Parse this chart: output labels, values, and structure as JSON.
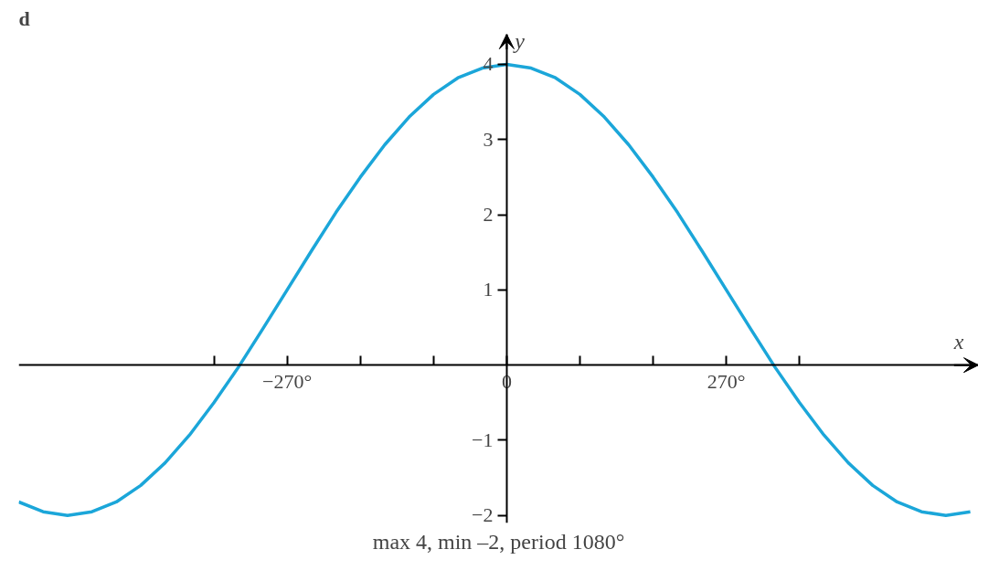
{
  "chart_data": {
    "type": "line",
    "title": "d",
    "xlabel": "x",
    "ylabel": "y",
    "annotations": [
      "max 4, min –2, period 1080°"
    ],
    "x": [
      -600,
      -570,
      -540,
      -510,
      -480,
      -450,
      -420,
      -390,
      -360,
      -330,
      -300,
      -270,
      -240,
      -210,
      -180,
      -150,
      -120,
      -90,
      -60,
      -30,
      0,
      30,
      60,
      90,
      120,
      150,
      180,
      210,
      240,
      270,
      300,
      330,
      360,
      390,
      420,
      450,
      480,
      510,
      540,
      570
    ],
    "series": [
      {
        "color": "#1ba6d9",
        "values": [
          -1.82,
          -1.95,
          -2,
          -1.95,
          -1.82,
          -1.6,
          -1.3,
          -0.93,
          -0.5,
          -0.03,
          0.48,
          1,
          1.52,
          2.03,
          2.5,
          2.93,
          3.3,
          3.6,
          3.82,
          3.95,
          4,
          3.95,
          3.82,
          3.6,
          3.3,
          2.93,
          2.5,
          2.03,
          1.52,
          1,
          0.48,
          -0.03,
          -0.5,
          -0.93,
          -1.3,
          -1.6,
          -1.82,
          -1.95,
          -2,
          -1.95
        ]
      }
    ],
    "xlim": [
      -600,
      580
    ],
    "ylim": [
      -2.1,
      4.4
    ],
    "xticks": [
      {
        "value": -360,
        "label": null
      },
      {
        "value": -270,
        "label": "−270°"
      },
      {
        "value": -180,
        "label": null
      },
      {
        "value": -90,
        "label": null
      },
      {
        "value": 0,
        "label": "0"
      },
      {
        "value": 90,
        "label": null
      },
      {
        "value": 180,
        "label": null
      },
      {
        "value": 270,
        "label": "270°"
      },
      {
        "value": 360,
        "label": null
      }
    ],
    "yticks": [
      {
        "value": -2,
        "label": "−2"
      },
      {
        "value": -1,
        "label": "−1"
      },
      {
        "value": 1,
        "label": "1"
      },
      {
        "value": 2,
        "label": "2"
      },
      {
        "value": 3,
        "label": "3"
      },
      {
        "value": 4,
        "label": "4"
      }
    ],
    "grid": false,
    "marker": "none",
    "line_style": "solid"
  }
}
